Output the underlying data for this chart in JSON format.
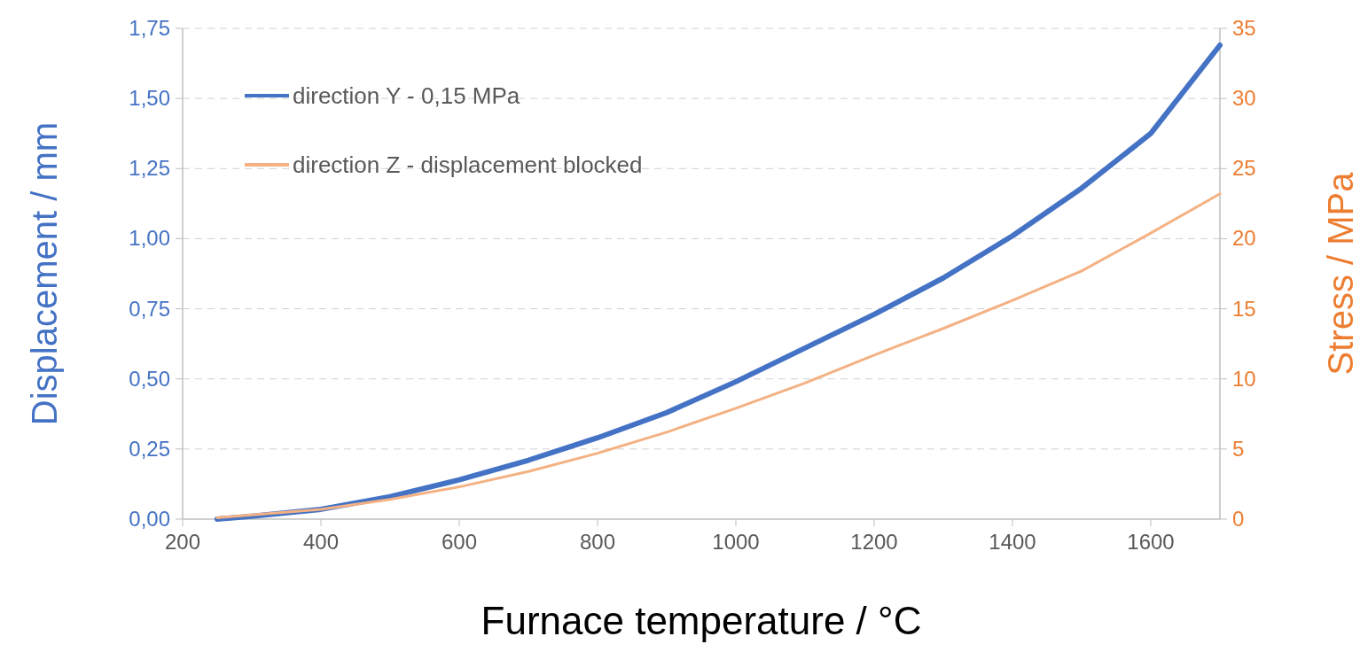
{
  "chart_data": {
    "type": "line",
    "xlabel": "Furnace temperature / °C",
    "ylabel": "Displacement / mm",
    "y2label": "Stress / MPa",
    "xlim": [
      200,
      1700
    ],
    "xticks": [
      200,
      400,
      600,
      800,
      1000,
      1200,
      1400,
      1600
    ],
    "ylim": [
      0,
      1.75
    ],
    "yticks": [
      {
        "value": 0,
        "label": "0,00"
      },
      {
        "value": 0.25,
        "label": "0,25"
      },
      {
        "value": 0.5,
        "label": "0,50"
      },
      {
        "value": 0.75,
        "label": "0,75"
      },
      {
        "value": 1,
        "label": "1,00"
      },
      {
        "value": 1.25,
        "label": "1,25"
      },
      {
        "value": 1.5,
        "label": "1,50"
      },
      {
        "value": 1.75,
        "label": "1,75"
      }
    ],
    "y2lim": [
      0,
      35
    ],
    "y2ticks": [
      0,
      5,
      10,
      15,
      20,
      25,
      30,
      35
    ],
    "grid": "y",
    "legend": "top left",
    "marker": "none",
    "line_style": "solid",
    "series": [
      {
        "name": "direction Y - 0,15 MPa",
        "color": "#4472c4",
        "x": [
          250,
          300,
          400,
          500,
          600,
          700,
          800,
          900,
          1000,
          1100,
          1200,
          1300,
          1400,
          1500,
          1600,
          1700
        ],
        "values": [
          0,
          0.01,
          0.035,
          0.08,
          0.14,
          0.21,
          0.29,
          0.38,
          0.49,
          0.61,
          0.73,
          0.86,
          1.01,
          1.18,
          1.375,
          1.69
        ]
      },
      {
        "name": "direction Z - displacement blocked",
        "color": "#f4b183",
        "axis": "y2",
        "x": [
          250,
          300,
          400,
          500,
          600,
          700,
          800,
          900,
          1000,
          1100,
          1200,
          1300,
          1400,
          1500,
          1600,
          1700
        ],
        "values": [
          0.1,
          0.3,
          0.7,
          1.4,
          2.3,
          3.4,
          4.7,
          6.2,
          7.9,
          9.7,
          11.7,
          13.6,
          15.6,
          17.7,
          20.4,
          23.2
        ]
      }
    ]
  }
}
